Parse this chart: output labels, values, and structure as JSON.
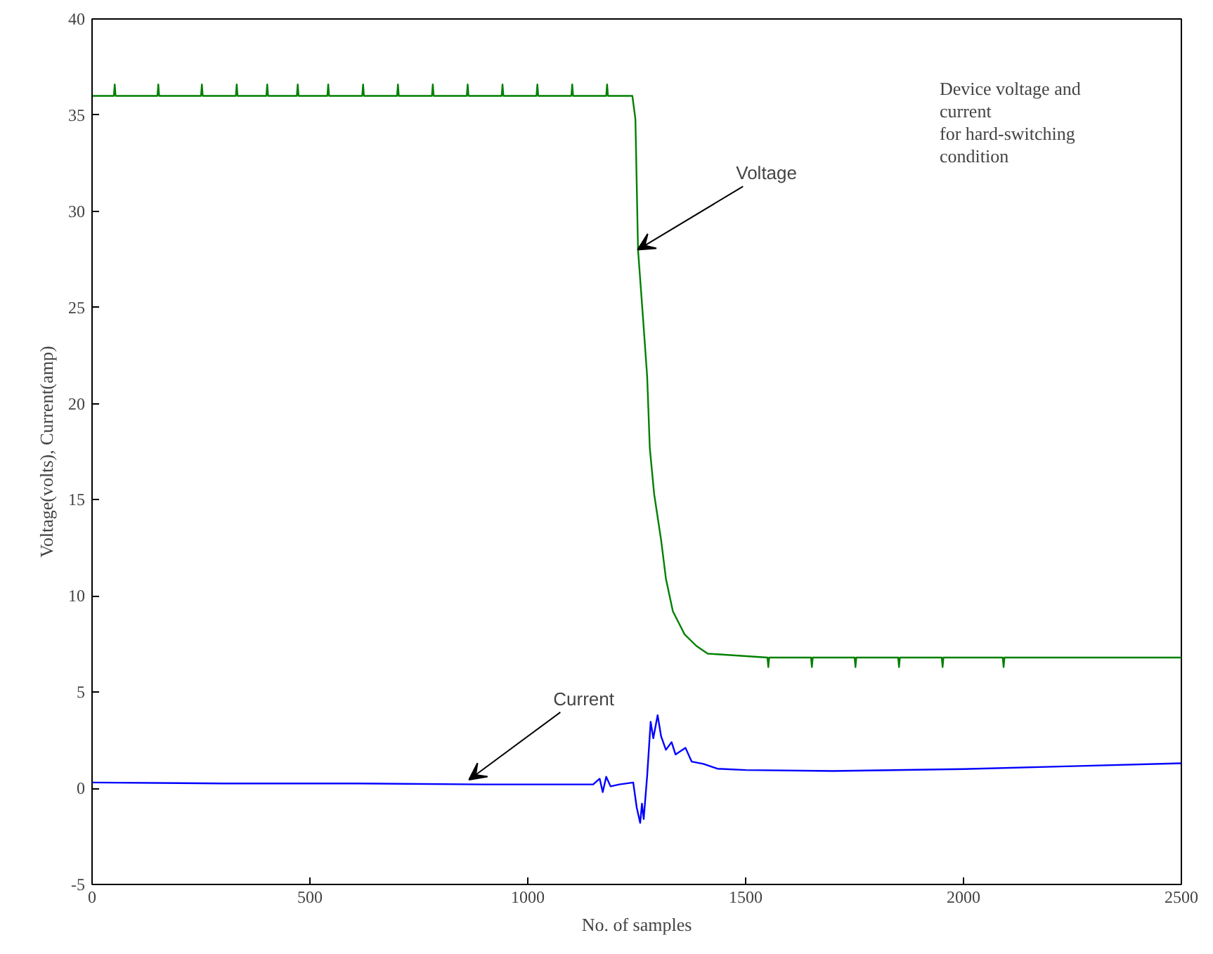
{
  "chart_data": {
    "type": "line",
    "xlabel": "No. of samples",
    "ylabel": "Voltage(volts), Current(amp)",
    "xlim": [
      0,
      2500
    ],
    "ylim": [
      -5,
      40
    ],
    "xticks": [
      0,
      500,
      1000,
      1500,
      2000,
      2500
    ],
    "yticks": [
      -5,
      0,
      5,
      10,
      15,
      20,
      25,
      30,
      35,
      40
    ],
    "grid": false,
    "series": [
      {
        "color": "#008000",
        "x": [
          0,
          50,
          52,
          54,
          100,
          150,
          152,
          154,
          200,
          250,
          252,
          254,
          300,
          330,
          332,
          334,
          360,
          400,
          402,
          404,
          430,
          470,
          472,
          474,
          500,
          540,
          542,
          544,
          580,
          620,
          622,
          624,
          660,
          700,
          702,
          704,
          740,
          780,
          782,
          784,
          820,
          860,
          862,
          864,
          900,
          940,
          942,
          944,
          980,
          1020,
          1022,
          1024,
          1060,
          1100,
          1102,
          1104,
          1140,
          1180,
          1182,
          1184,
          1220,
          1240,
          1247,
          1253,
          1264,
          1274,
          1280,
          1290,
          1306,
          1317,
          1333,
          1360,
          1387,
          1413,
          1550,
          1552,
          1554,
          1650,
          1652,
          1654,
          1750,
          1752,
          1754,
          1850,
          1852,
          1854,
          1950,
          1952,
          1954,
          2090,
          2092,
          2094,
          2500
        ],
        "values": [
          36.0,
          36.0,
          36.6,
          36.0,
          36.0,
          36.0,
          36.6,
          36.0,
          36.0,
          36.0,
          36.6,
          36.0,
          36.0,
          36.0,
          36.6,
          36.0,
          36.0,
          36.0,
          36.6,
          36.0,
          36.0,
          36.0,
          36.6,
          36.0,
          36.0,
          36.0,
          36.6,
          36.0,
          36.0,
          36.0,
          36.6,
          36.0,
          36.0,
          36.0,
          36.6,
          36.0,
          36.0,
          36.0,
          36.6,
          36.0,
          36.0,
          36.0,
          36.6,
          36.0,
          36.0,
          36.0,
          36.6,
          36.0,
          36.0,
          36.0,
          36.6,
          36.0,
          36.0,
          36.0,
          36.6,
          36.0,
          36.0,
          36.0,
          36.6,
          36.0,
          36.0,
          36.0,
          34.8,
          28.0,
          24.6,
          21.4,
          17.7,
          15.3,
          12.9,
          10.9,
          9.2,
          8.0,
          7.4,
          7.0,
          6.8,
          6.3,
          6.8,
          6.8,
          6.3,
          6.8,
          6.8,
          6.3,
          6.8,
          6.8,
          6.3,
          6.8,
          6.8,
          6.3,
          6.8,
          6.8,
          6.3,
          6.8,
          6.8
        ]
      },
      {
        "color": "#0000ff",
        "x": [
          0,
          300,
          600,
          900,
          1150,
          1165,
          1172,
          1180,
          1190,
          1210,
          1242,
          1250,
          1258,
          1262,
          1266,
          1274,
          1282,
          1288,
          1298,
          1306,
          1317,
          1330,
          1339,
          1362,
          1376,
          1403,
          1435,
          1500,
          1700,
          2000,
          2250,
          2500
        ],
        "values": [
          0.3,
          0.25,
          0.25,
          0.2,
          0.2,
          0.5,
          -0.2,
          0.6,
          0.1,
          0.2,
          0.3,
          -1.0,
          -1.8,
          -0.8,
          -1.6,
          0.66,
          3.46,
          2.6,
          3.8,
          2.7,
          2.0,
          2.4,
          1.76,
          2.1,
          1.39,
          1.27,
          1.02,
          0.95,
          0.9,
          1.0,
          1.15,
          1.3
        ]
      }
    ],
    "annotations": [
      {
        "text": "Voltage",
        "x": 1252,
        "y": 28.0
      },
      {
        "text": "Current",
        "x": 865,
        "y": 0.44
      },
      "Device voltage and\ncurrent\nfor hard-switching\ncondition"
    ]
  }
}
